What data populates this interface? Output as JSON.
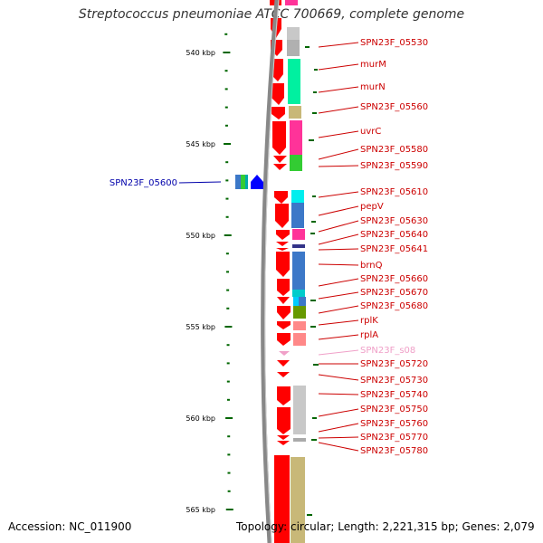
{
  "title": "Streptococcus pneumoniae ATCC 700669, complete genome",
  "footer": {
    "accession": "Accession: NC_011900",
    "topology": "Topology: circular; Length: 2,221,315 bp; Genes: 2,079"
  },
  "ticks": [
    "540 kbp",
    "545 kbp",
    "550 kbp",
    "555 kbp",
    "560 kbp",
    "565 kbp"
  ],
  "genes_right": [
    {
      "name": "SPN23F_05530",
      "color": "#cc0000"
    },
    {
      "name": "murM",
      "color": "#cc0000"
    },
    {
      "name": "murN",
      "color": "#cc0000"
    },
    {
      "name": "SPN23F_05560",
      "color": "#cc0000"
    },
    {
      "name": "uvrC",
      "color": "#cc0000"
    },
    {
      "name": "SPN23F_05580",
      "color": "#cc0000"
    },
    {
      "name": "SPN23F_05590",
      "color": "#cc0000"
    },
    {
      "name": "SPN23F_05610",
      "color": "#cc0000"
    },
    {
      "name": "pepV",
      "color": "#cc0000"
    },
    {
      "name": "SPN23F_05630",
      "color": "#cc0000"
    },
    {
      "name": "SPN23F_05640",
      "color": "#cc0000"
    },
    {
      "name": "SPN23F_05641",
      "color": "#cc0000"
    },
    {
      "name": "brnQ",
      "color": "#cc0000"
    },
    {
      "name": "SPN23F_05660",
      "color": "#cc0000"
    },
    {
      "name": "SPN23F_05670",
      "color": "#cc0000"
    },
    {
      "name": "SPN23F_05680",
      "color": "#cc0000"
    },
    {
      "name": "rplK",
      "color": "#cc0000"
    },
    {
      "name": "rplA",
      "color": "#cc0000"
    },
    {
      "name": "SPN23F_s08",
      "color": "#f0a0c8"
    },
    {
      "name": "SPN23F_05720",
      "color": "#cc0000"
    },
    {
      "name": "SPN23F_05730",
      "color": "#cc0000"
    },
    {
      "name": "SPN23F_05740",
      "color": "#cc0000"
    },
    {
      "name": "SPN23F_05750",
      "color": "#cc0000"
    },
    {
      "name": "SPN23F_05760",
      "color": "#cc0000"
    },
    {
      "name": "SPN23F_05770",
      "color": "#cc0000"
    },
    {
      "name": "SPN23F_05780",
      "color": "#cc0000"
    }
  ],
  "genes_left": [
    {
      "name": "SPN23F_05600",
      "color": "#0000aa"
    }
  ],
  "colors": {
    "forward_cds": "#ff0000",
    "reverse_cds": "#0000ff",
    "backbone": "#888888",
    "tick": "#006600"
  }
}
